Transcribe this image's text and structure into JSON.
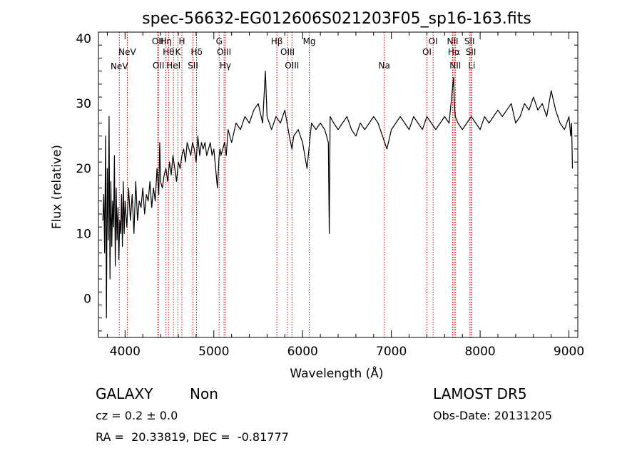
{
  "chart_data": {
    "type": "line",
    "title": "spec-56632-EG012606S021203F05_sp16-163.fits",
    "xlabel": "Wavelength (Å)",
    "ylabel": "Flux (relative)",
    "xlim": [
      3700,
      9100
    ],
    "ylim": [
      -6,
      41
    ],
    "xticks": [
      4000,
      5000,
      6000,
      7000,
      8000,
      9000
    ],
    "yticks": [
      0,
      10,
      20,
      30,
      40
    ],
    "grid": false,
    "line_color": "#000000",
    "marker_color": "#cc0000",
    "series": [
      {
        "x": [
          3750,
          3760,
          3770,
          3780,
          3790,
          3800,
          3810,
          3820,
          3830,
          3840,
          3850,
          3860,
          3870,
          3880,
          3890,
          3900,
          3910,
          3920,
          3930,
          3940,
          3950,
          3960,
          3970,
          3980,
          3990,
          4000,
          4020,
          4040,
          4060,
          4080,
          4100,
          4120,
          4140,
          4160,
          4180,
          4200,
          4220,
          4240,
          4260,
          4280,
          4300,
          4320,
          4340,
          4360,
          4380,
          4390,
          4400,
          4420,
          4440,
          4460,
          4480,
          4500,
          4520,
          4540,
          4560,
          4580,
          4600,
          4620,
          4640,
          4660,
          4680,
          4700,
          4720,
          4740,
          4760,
          4780,
          4800,
          4820,
          4840,
          4860,
          4880,
          4900,
          4920,
          4940,
          4960,
          4980,
          5000,
          5020,
          5040,
          5060,
          5070,
          5080,
          5100,
          5120,
          5140,
          5160,
          5180,
          5200,
          5250,
          5300,
          5350,
          5400,
          5450,
          5500,
          5550,
          5580,
          5600,
          5650,
          5700,
          5750,
          5800,
          5850,
          5880,
          5900,
          5950,
          6000,
          6050,
          6100,
          6150,
          6200,
          6250,
          6290,
          6300,
          6310,
          6350,
          6400,
          6450,
          6500,
          6550,
          6600,
          6650,
          6700,
          6750,
          6800,
          6850,
          6900,
          6950,
          7000,
          7050,
          7100,
          7150,
          7200,
          7250,
          7300,
          7350,
          7400,
          7450,
          7500,
          7550,
          7600,
          7650,
          7700,
          7710,
          7720,
          7750,
          7800,
          7850,
          7900,
          7950,
          8000,
          8050,
          8100,
          8150,
          8200,
          8250,
          8300,
          8350,
          8400,
          8450,
          8500,
          8550,
          8600,
          8650,
          8700,
          8750,
          8800,
          8850,
          8900,
          8950,
          9000,
          9020,
          9030,
          9040
        ],
        "y": [
          12,
          16,
          7,
          25,
          -3,
          20,
          9,
          28,
          3,
          18,
          8,
          15,
          11,
          22,
          5,
          17,
          9,
          14,
          6,
          12,
          10,
          16,
          8,
          18,
          10,
          15,
          11,
          17,
          12,
          16,
          10,
          18,
          12,
          15,
          14,
          17,
          13,
          16,
          15,
          18,
          14,
          17,
          15,
          20,
          16,
          24,
          18,
          17,
          19,
          20,
          18,
          21,
          19,
          22,
          20,
          18,
          21,
          20,
          22,
          23,
          21,
          24,
          23,
          22,
          24,
          23,
          21,
          25,
          22,
          24,
          23,
          24,
          22,
          23,
          24,
          22,
          23,
          20,
          17,
          22,
          23,
          22,
          23,
          24,
          22,
          26,
          25,
          24,
          27,
          26,
          28,
          27,
          29,
          30,
          27,
          35,
          28,
          26,
          28,
          27,
          29,
          25,
          23,
          25,
          26,
          24,
          20,
          27,
          26,
          27,
          26,
          24,
          10,
          28,
          27,
          26,
          27,
          28,
          26,
          25,
          27,
          26,
          27,
          28,
          27,
          25,
          23,
          26,
          27,
          28,
          27,
          26,
          28,
          27,
          26,
          28,
          27,
          26,
          27,
          28,
          27,
          34,
          30,
          28,
          27,
          26,
          27,
          28,
          27,
          26,
          28,
          27,
          28,
          29,
          28,
          29,
          30,
          27,
          28,
          30,
          29,
          31,
          29,
          30,
          28,
          32,
          29,
          27,
          26,
          28,
          25,
          27,
          20
        ]
      }
    ],
    "lines": [
      {
        "label": "NeV",
        "wavelength": 3935,
        "row": 3
      },
      {
        "label": "NeV",
        "wavelength": 4025,
        "row": 2
      },
      {
        "label": "OII",
        "wavelength": 4368,
        "row": 1
      },
      {
        "label": "OII",
        "wavelength": 4376,
        "row": 4
      },
      {
        "label": "Hη",
        "wavelength": 4460,
        "row": 1
      },
      {
        "label": "Hθ",
        "wavelength": 4490,
        "row": 2
      },
      {
        "label": "HeI",
        "wavelength": 4545,
        "row": 4
      },
      {
        "label": "K",
        "wavelength": 4595,
        "row": 2
      },
      {
        "label": "H",
        "wavelength": 4640,
        "row": 1
      },
      {
        "label": "SII",
        "wavelength": 4765,
        "row": 4
      },
      {
        "label": "Hδ",
        "wavelength": 4805,
        "row": 2
      },
      {
        "label": "G",
        "wavelength": 5060,
        "row": 1
      },
      {
        "label": "OIII",
        "wavelength": 5115,
        "row": 2
      },
      {
        "label": "Hγ",
        "wavelength": 5130,
        "row": 4
      },
      {
        "label": "Hβ",
        "wavelength": 5710,
        "row": 1
      },
      {
        "label": "OIII",
        "wavelength": 5830,
        "row": 2
      },
      {
        "label": "OIII",
        "wavelength": 5880,
        "row": 4
      },
      {
        "label": "Mg",
        "wavelength": 6075,
        "row": 1
      },
      {
        "label": "Na",
        "wavelength": 6920,
        "row": 4
      },
      {
        "label": "OI",
        "wavelength": 7400,
        "row": 2
      },
      {
        "label": "OI",
        "wavelength": 7470,
        "row": 1
      },
      {
        "label": "NII",
        "wavelength": 7690,
        "row": 1
      },
      {
        "label": "Hα",
        "wavelength": 7705,
        "row": 2
      },
      {
        "label": "NII",
        "wavelength": 7720,
        "row": 4
      },
      {
        "label": "SII",
        "wavelength": 7880,
        "row": 1
      },
      {
        "label": "SII",
        "wavelength": 7895,
        "row": 2
      },
      {
        "label": "Li",
        "wavelength": 7905,
        "row": 4
      }
    ]
  },
  "info": {
    "class": "GALAXY",
    "subclass": "Non",
    "cz": "cz = 0.2 ± 0.0",
    "radec": "RA =  20.33819, DEC =  -0.81777",
    "survey": "LAMOST DR5",
    "obsdate": "Obs-Date: 20131205"
  }
}
